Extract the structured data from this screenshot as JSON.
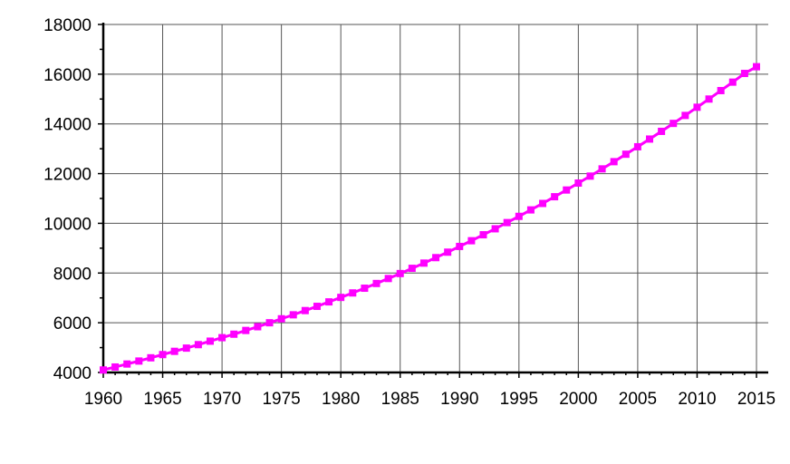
{
  "chart_data": {
    "type": "line",
    "title": "",
    "xlabel": "",
    "ylabel": "",
    "xlim": [
      1960,
      2015
    ],
    "ylim": [
      4000,
      18000
    ],
    "x_ticks": [
      1960,
      1965,
      1970,
      1975,
      1980,
      1985,
      1990,
      1995,
      2000,
      2005,
      2010,
      2015
    ],
    "y_ticks": [
      4000,
      6000,
      8000,
      10000,
      12000,
      14000,
      16000,
      18000
    ],
    "x_tick_labels": [
      "1960",
      "1965",
      "1970",
      "1975",
      "1980",
      "1985",
      "1990",
      "1995",
      "2000",
      "2005",
      "2010",
      "2015"
    ],
    "y_tick_labels": [
      "4000",
      "6000",
      "8000",
      "10000",
      "12000",
      "14000",
      "16000",
      "18000"
    ],
    "grid": true,
    "legend": "none",
    "series": [
      {
        "color": "#ff00ff",
        "marker": "square",
        "x": [
          1960,
          1961,
          1962,
          1963,
          1964,
          1965,
          1966,
          1967,
          1968,
          1969,
          1970,
          1971,
          1972,
          1973,
          1974,
          1975,
          1976,
          1977,
          1978,
          1979,
          1980,
          1981,
          1982,
          1983,
          1984,
          1985,
          1986,
          1987,
          1988,
          1989,
          1990,
          1991,
          1992,
          1993,
          1994,
          1995,
          1996,
          1997,
          1998,
          1999,
          2000,
          2001,
          2002,
          2003,
          2004,
          2005,
          2006,
          2007,
          2008,
          2009,
          2010,
          2011,
          2012,
          2013,
          2014,
          2015
        ],
        "values": [
          4100,
          4220,
          4340,
          4460,
          4590,
          4720,
          4850,
          4980,
          5120,
          5260,
          5400,
          5540,
          5690,
          5840,
          6000,
          6160,
          6320,
          6490,
          6660,
          6840,
          7020,
          7200,
          7390,
          7580,
          7780,
          7980,
          8190,
          8400,
          8620,
          8840,
          9070,
          9300,
          9540,
          9780,
          10030,
          10280,
          10540,
          10800,
          11070,
          11340,
          11620,
          11900,
          12190,
          12480,
          12780,
          13080,
          13390,
          13700,
          14020,
          14340,
          14670,
          15000,
          15340,
          15680,
          16030,
          16300
        ]
      }
    ]
  }
}
